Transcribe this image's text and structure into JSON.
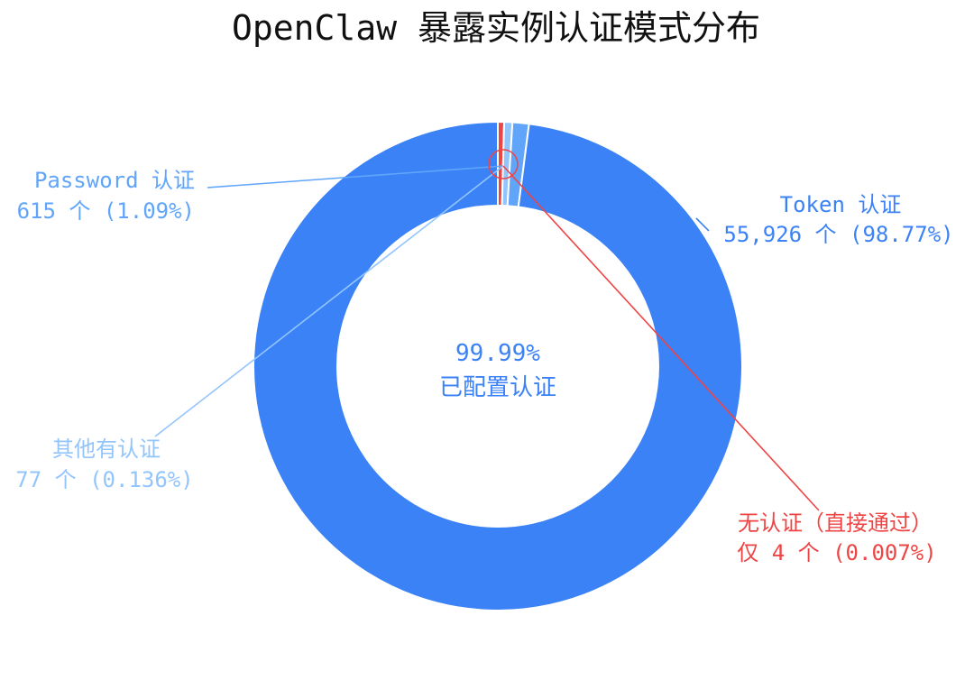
{
  "chart_data": {
    "type": "pie",
    "title": "OpenClaw 暴露实例认证模式分布",
    "center_label": {
      "line1": "99.99%",
      "line2": "已配置认证"
    },
    "slices": [
      {
        "key": "token",
        "label_line1": "Token 认证",
        "label_line2": "55,926 个 (98.77%)",
        "value": 55926,
        "color": "#3b82f6"
      },
      {
        "key": "password",
        "label_line1": "Password 认证",
        "label_line2": "615 个 (1.09%)",
        "value": 615,
        "color": "#60a5fa"
      },
      {
        "key": "other",
        "label_line1": "其他有认证",
        "label_line2": "77 个 (0.136%)",
        "value": 77,
        "color": "#93c5fd"
      },
      {
        "key": "none",
        "label_line1": "无认证（直接通过）",
        "label_line2": "仅 4 个 (0.007%)",
        "value": 4,
        "color": "#ef4444"
      }
    ]
  }
}
